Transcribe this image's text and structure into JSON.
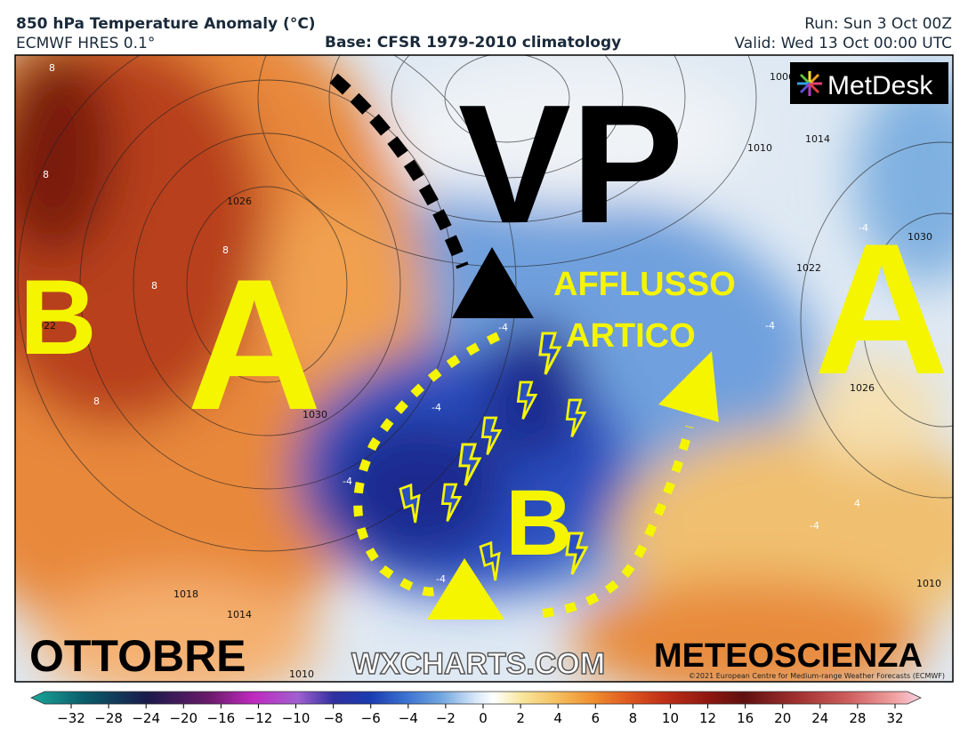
{
  "header": {
    "title": "850 hPa Temperature Anomaly (°C)",
    "model": "ECMWF HRES 0.1°",
    "base": "Base: CFSR 1979-2010 climatology",
    "run": "Run: Sun 3 Oct 00Z",
    "valid": "Valid: Wed 13 Oct 00:00 UTC"
  },
  "logo": "MetDesk",
  "map": {
    "labels": {
      "vp": "VP",
      "a_west": "A",
      "a_east": "A",
      "b_west": "B",
      "b_center": "B",
      "afflusso": "AFFLUSSO",
      "artico": "ARTICO"
    },
    "isobar_labels": [
      "1026",
      "1022",
      "1030",
      "1018",
      "1014",
      "1010",
      "1006",
      "1010",
      "1014",
      "1022",
      "1026",
      "1030",
      "1010"
    ],
    "temperature_labels": [
      "8",
      "8",
      "8",
      "8",
      "8",
      "-4",
      "-4",
      "-4",
      "-4",
      "-4",
      "-4",
      "4",
      "-4"
    ]
  },
  "footer": {
    "left": "OTTOBRE",
    "center": "WXCHARTS.COM",
    "right": "METEOSCIENZA",
    "copyright": "©2021 European Centre for Medium-range Weather Forecasts (ECMWF)"
  },
  "colorbar": {
    "ticks": [
      {
        "value": -32,
        "label": "−32"
      },
      {
        "value": -28,
        "label": "−28"
      },
      {
        "value": -24,
        "label": "−24"
      },
      {
        "value": -20,
        "label": "−20"
      },
      {
        "value": -16,
        "label": "−16"
      },
      {
        "value": -12,
        "label": "−12"
      },
      {
        "value": -10,
        "label": "−10"
      },
      {
        "value": -8,
        "label": "−8"
      },
      {
        "value": -6,
        "label": "−6"
      },
      {
        "value": -4,
        "label": "−4"
      },
      {
        "value": -2,
        "label": "−2"
      },
      0,
      2,
      4,
      6,
      8,
      10,
      12,
      16,
      20,
      24,
      28,
      32
    ]
  }
}
